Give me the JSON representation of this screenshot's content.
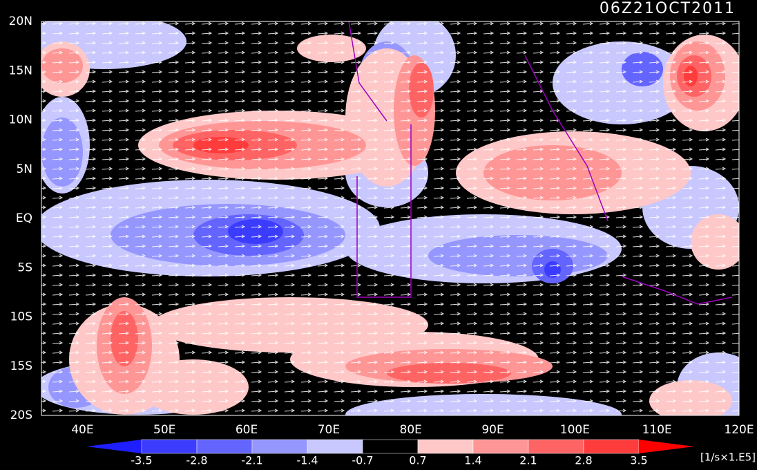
{
  "title": "06Z21OCT2011",
  "lat_labels": [
    "20N",
    "15N",
    "10N",
    "5N",
    "EQ",
    "5S",
    "10S",
    "15S",
    "20S"
  ],
  "lon_labels": [
    "40E",
    "50E",
    "60E",
    "70E",
    "80E",
    "90E",
    "100E",
    "110E",
    "120E"
  ],
  "colorbar": {
    "levels": [
      -3.5,
      -2.8,
      -2.1,
      -1.4,
      -0.7,
      0.7,
      1.4,
      2.1,
      2.8,
      3.5
    ],
    "colors": [
      "#1e1eff",
      "#3c3cff",
      "#6464ff",
      "#9696ff",
      "#c8c8ff",
      "#000000",
      "#ffc8c8",
      "#ff9696",
      "#ff6464",
      "#ff3c3c",
      "#ff0000"
    ],
    "units": "[1/s×1.E5]"
  }
}
